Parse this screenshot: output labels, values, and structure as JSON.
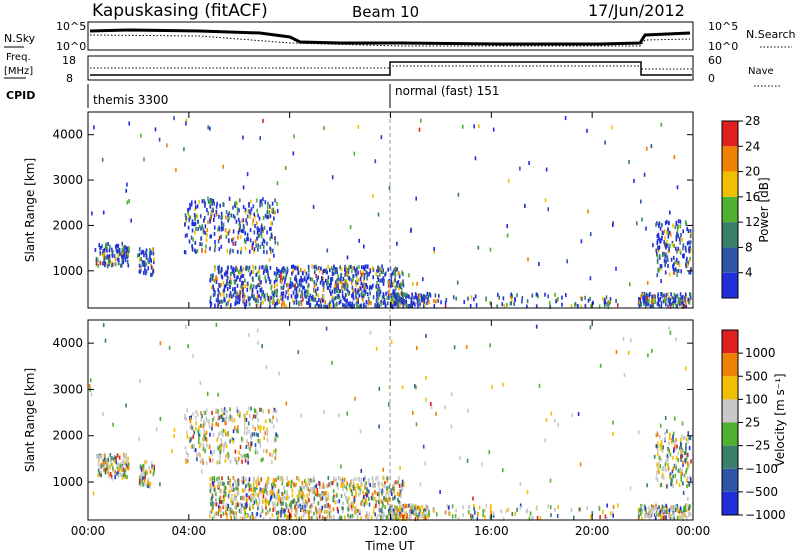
{
  "header": {
    "station": "Kapuskasing (fitACF)",
    "beam": "Beam 10",
    "date": "17/Jun/2012"
  },
  "top_panels": {
    "nsky_label": "N.Sky",
    "nsky_ticks": [
      "10^5",
      "10^0"
    ],
    "nsearch_label": "N.Search",
    "nsearch_ticks": [
      "10^5",
      "10^0"
    ],
    "freq_label": "Freq.",
    "freq_unit": "[MHz]",
    "freq_ticks": [
      "18",
      "8"
    ],
    "nave_label": "Nave",
    "nave_ticks": [
      "60",
      "0"
    ],
    "cpid_label": "CPID",
    "cpid_segments": [
      {
        "label": "themis 3300",
        "start_hour": 0
      },
      {
        "label": "normal (fast) 151",
        "start_hour": 12
      }
    ]
  },
  "chart_data": [
    {
      "type": "heatmap",
      "name": "power",
      "ylabel": "Slant Range [km]",
      "yticks": [
        "1000",
        "2000",
        "3000",
        "4000"
      ],
      "ylim": [
        180,
        4500
      ],
      "xlim": [
        0,
        24
      ],
      "colorbar_label": "Power [dB]",
      "colorbar_ticks": [
        "4",
        "8",
        "12",
        "16",
        "20",
        "24",
        "28"
      ],
      "colors": [
        "#1f2fdc",
        "#2f55a8",
        "#3a7f6a",
        "#50b030",
        "#f0c000",
        "#f08000",
        "#e02020"
      ],
      "colorbar_range": [
        0,
        32
      ]
    },
    {
      "type": "heatmap",
      "name": "velocity",
      "ylabel": "Slant Range [km]",
      "yticks": [
        "1000",
        "2000",
        "3000",
        "4000"
      ],
      "ylim": [
        180,
        4500
      ],
      "xlim": [
        0,
        24
      ],
      "colorbar_label": "Velocity [m s⁻¹]",
      "colorbar_ticks": [
        "1000",
        "500",
        "100",
        "25",
        "−25",
        "−100",
        "−500",
        "−1000"
      ],
      "colors": [
        "#1f2fdc",
        "#2f55a8",
        "#3a7f6a",
        "#50b030",
        "#c8c8c8",
        "#f0c000",
        "#f08000",
        "#e02020"
      ]
    }
  ],
  "x_axis": {
    "ticks": [
      "00:00",
      "04:00",
      "08:00",
      "12:00",
      "16:00",
      "20:00",
      "00:00"
    ],
    "title": "Time UT"
  }
}
